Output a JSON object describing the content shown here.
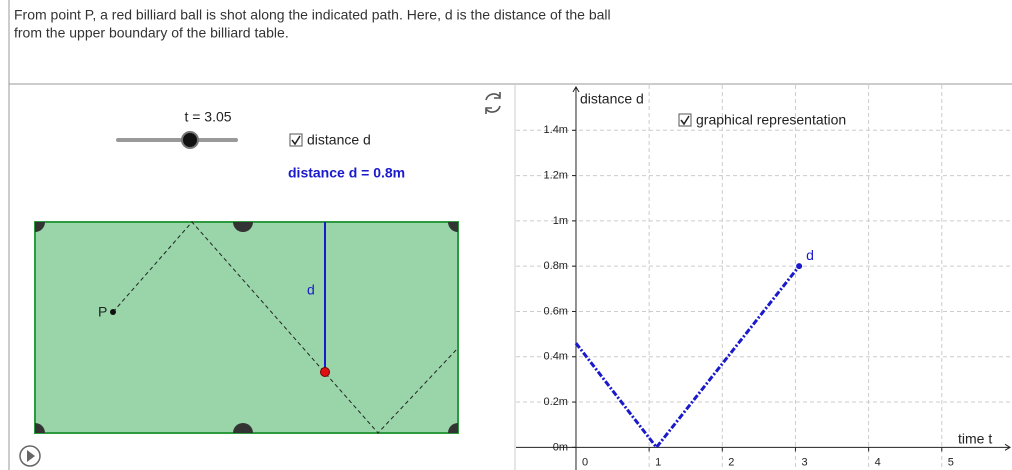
{
  "instructions": [
    "From point P, a red billiard ball is shot along the indicated path. Here, d is the distance of the ball",
    "from the upper boundary of the billiard table."
  ],
  "controls": {
    "slider_label": "t = 3.05",
    "checkbox_label": "distance d",
    "readout": "distance d = 0.8m"
  },
  "table": {
    "point_label": "P",
    "distance_label": "d"
  },
  "chart_data": {
    "type": "line",
    "y_axis_label": "distance d",
    "x_axis_label": "time t",
    "checkbox_label": "graphical representation",
    "x": [
      0,
      1.1,
      3.05
    ],
    "series": [
      {
        "name": "d",
        "color": "#1a1acc",
        "values": [
          0.46,
          0,
          0.8
        ]
      }
    ],
    "xlim": [
      -0.82,
      5.96
    ],
    "ylim": [
      -0.1,
      1.6
    ],
    "xticks": [
      0,
      1,
      2,
      3,
      4,
      5
    ],
    "yticks": [
      {
        "value": 0,
        "label": "0m"
      },
      {
        "value": 0.2,
        "label": "0.2m"
      },
      {
        "value": 0.4,
        "label": "0.4m"
      },
      {
        "value": 0.6,
        "label": "0.6m"
      },
      {
        "value": 0.8,
        "label": "0.8m"
      },
      {
        "value": 1,
        "label": "1m"
      },
      {
        "value": 1.2,
        "label": "1.2m"
      },
      {
        "value": 1.4,
        "label": "1.4m"
      }
    ],
    "grid": true
  }
}
